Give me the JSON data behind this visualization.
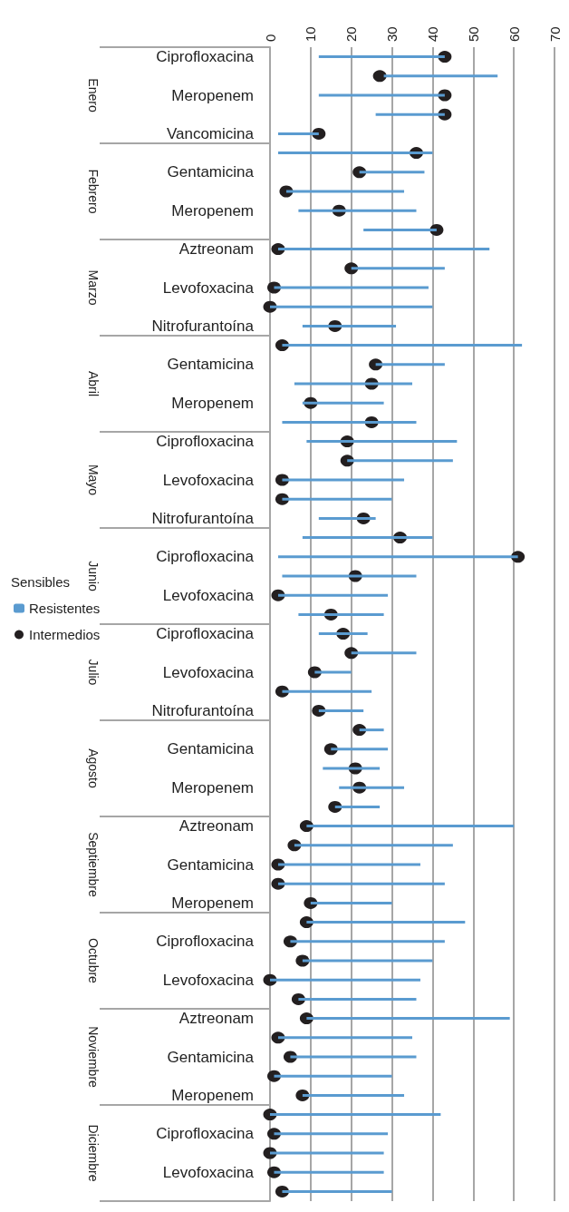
{
  "chart_data": {
    "type": "bar",
    "orientation": "horizontal",
    "legend": "left",
    "legend_title": "Sensibles",
    "grid": "x",
    "marker": "circle",
    "categories": [
      "Ciprofloxacina",
      null,
      "Meropenem",
      null,
      "Vancomicina",
      null,
      "Gentamicina",
      null,
      "Meropenem",
      null,
      "Aztreonam",
      null,
      "Levofoxacina",
      null,
      "Nitrofurantoína",
      null,
      "Gentamicina",
      null,
      "Meropenem",
      null,
      "Ciprofloxacina",
      null,
      "Levofoxacina",
      null,
      "Nitrofurantoína",
      null,
      "Ciprofloxacina",
      null,
      "Levofoxacina",
      null,
      "Ciprofloxacina",
      null,
      "Levofoxacina",
      null,
      "Nitrofurantoína",
      null,
      "Gentamicina",
      null,
      "Meropenem",
      null,
      "Aztreonam",
      null,
      "Gentamicina",
      null,
      "Meropenem",
      null,
      "Ciprofloxacina",
      null,
      "Levofoxacina",
      null,
      "Aztreonam",
      null,
      "Gentamicina",
      null,
      "Meropenem",
      null,
      "Ciprofloxacina",
      null,
      "Levofoxacina",
      null
    ],
    "annotations": [
      "Enero",
      "Febrero",
      "Marzo",
      "Abril",
      "Mayo",
      "Junio",
      "Julio",
      "Agosto",
      "Septiembre",
      "Octubre",
      "Noviembre",
      "Diciembre"
    ],
    "xlim": [
      0,
      70
    ],
    "xticks": [
      0,
      10,
      20,
      30,
      40,
      50,
      60,
      70
    ],
    "series": [
      {
        "name": "Resistentes",
        "color": "#5a9bd0",
        "base": [
          12,
          28,
          12,
          26,
          2,
          2,
          22,
          4,
          7,
          23,
          2,
          20,
          1,
          0,
          8,
          3,
          26,
          6,
          8,
          3,
          9,
          19,
          3,
          3,
          12,
          8,
          2,
          3,
          2,
          7,
          12,
          20,
          11,
          3,
          12,
          22,
          15,
          13,
          17,
          16,
          9,
          6,
          2,
          2,
          10,
          9,
          5,
          8,
          0,
          7,
          9,
          2,
          5,
          1,
          8,
          0,
          1,
          0,
          1,
          3
        ],
        "values": [
          31,
          28,
          31,
          17,
          10,
          38,
          16,
          29,
          29,
          18,
          52,
          23,
          38,
          40,
          23,
          59,
          17,
          29,
          20,
          33,
          37,
          26,
          30,
          27,
          14,
          32,
          59,
          33,
          27,
          21,
          12,
          16,
          9,
          22,
          11,
          6,
          14,
          14,
          16,
          11,
          51,
          39,
          35,
          41,
          20,
          39,
          38,
          32,
          37,
          29,
          50,
          33,
          31,
          29,
          25,
          42,
          28,
          28,
          27,
          27
        ]
      },
      {
        "name": "Intermedios",
        "type": "scatter",
        "color": "#231f20",
        "values": [
          43,
          27,
          43,
          43,
          12,
          36,
          22,
          4,
          17,
          41,
          2,
          20,
          1,
          0,
          16,
          3,
          26,
          25,
          10,
          25,
          19,
          19,
          3,
          3,
          23,
          32,
          61,
          21,
          2,
          15,
          18,
          20,
          11,
          3,
          12,
          22,
          15,
          21,
          22,
          16,
          9,
          6,
          2,
          2,
          10,
          9,
          5,
          8,
          0,
          7,
          9,
          2,
          5,
          1,
          8,
          0,
          1,
          0,
          1,
          3
        ]
      }
    ]
  }
}
